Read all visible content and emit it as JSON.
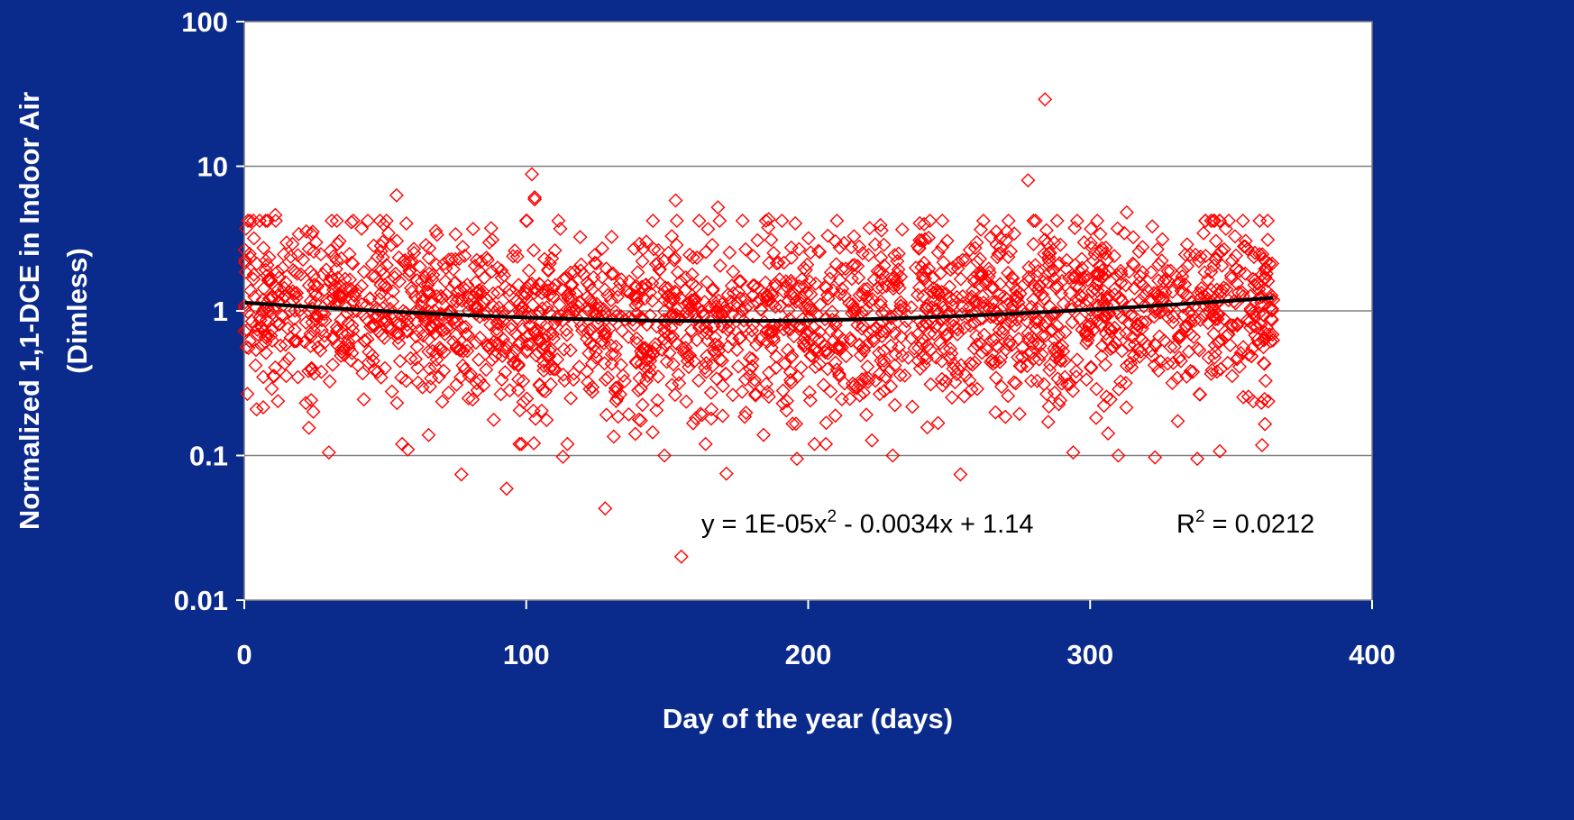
{
  "chart_data": {
    "type": "scatter",
    "title": "",
    "xlabel": "Day of the year (days)",
    "ylabel_lines": [
      "Normalized 1,1-DCE in Indoor Air",
      "(Dimless)"
    ],
    "xlim": [
      0,
      400
    ],
    "ylim": [
      0.01,
      100
    ],
    "yscale": "log",
    "x_ticks": [
      "0",
      "100",
      "200",
      "300",
      "400"
    ],
    "y_ticks": [
      "0.01",
      "0.1",
      "1",
      "10",
      "100"
    ],
    "grid": "horizontal major gridlines",
    "legend": "none",
    "marker": "diamond",
    "marker_color": "#ff0000",
    "trendline": {
      "type": "polynomial-2",
      "coefficients": [
        1e-05,
        -0.0034,
        1.14
      ],
      "x_range": [
        0,
        365
      ],
      "color": "#000000"
    },
    "annotation": {
      "equation_prefix": "y = 1E-05x",
      "equation_sup": "2",
      "equation_suffix": " - 0.0034x + 1.14",
      "r2_prefix": "R",
      "r2_sup": "2",
      "r2_suffix": " = 0.0212"
    },
    "notes": "Approximately 2,500 daily normalized samples scattered mostly between 0.1 and 5; representative readable points listed in outliers.",
    "outliers": [
      {
        "x": 4,
        "y": 0.42
      },
      {
        "x": 11,
        "y": 4.6
      },
      {
        "x": 30,
        "y": 0.105
      },
      {
        "x": 38,
        "y": 4.1
      },
      {
        "x": 54,
        "y": 6.3
      },
      {
        "x": 56,
        "y": 0.12
      },
      {
        "x": 58,
        "y": 0.11
      },
      {
        "x": 77,
        "y": 0.074
      },
      {
        "x": 88,
        "y": 3.1
      },
      {
        "x": 93,
        "y": 0.059
      },
      {
        "x": 102,
        "y": 8.8
      },
      {
        "x": 103,
        "y": 6.1
      },
      {
        "x": 103,
        "y": 5.9
      },
      {
        "x": 113,
        "y": 0.098
      },
      {
        "x": 128,
        "y": 0.043
      },
      {
        "x": 149,
        "y": 0.1
      },
      {
        "x": 153,
        "y": 5.8
      },
      {
        "x": 155,
        "y": 0.02
      },
      {
        "x": 168,
        "y": 5.2
      },
      {
        "x": 171,
        "y": 0.075
      },
      {
        "x": 186,
        "y": 4.3
      },
      {
        "x": 196,
        "y": 0.095
      },
      {
        "x": 226,
        "y": 3.6
      },
      {
        "x": 230,
        "y": 0.1
      },
      {
        "x": 254,
        "y": 0.074
      },
      {
        "x": 278,
        "y": 8.0
      },
      {
        "x": 284,
        "y": 29.0
      },
      {
        "x": 294,
        "y": 0.105
      },
      {
        "x": 310,
        "y": 0.1
      },
      {
        "x": 313,
        "y": 4.8
      },
      {
        "x": 323,
        "y": 0.097
      },
      {
        "x": 338,
        "y": 0.095
      },
      {
        "x": 346,
        "y": 4.2
      },
      {
        "x": 346,
        "y": 0.107
      },
      {
        "x": 361,
        "y": 0.118
      },
      {
        "x": 362,
        "y": 0.165
      },
      {
        "x": 363,
        "y": 3.1
      }
    ]
  }
}
